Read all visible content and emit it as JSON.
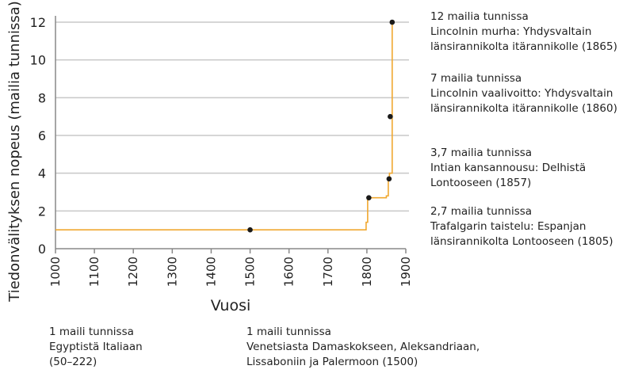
{
  "chart_data": {
    "type": "line",
    "xlabel": "Vuosi",
    "ylabel": "Tiedonvälityksen nopeus (mailia tunnissa)",
    "xlim": [
      1000,
      1900
    ],
    "ylim": [
      0,
      12
    ],
    "xticks": [
      "1000",
      "1100",
      "1200",
      "1300",
      "1400",
      "1500",
      "1600",
      "1700",
      "1800",
      "1900"
    ],
    "yticks": [
      "0",
      "2",
      "4",
      "6",
      "8",
      "10",
      "12"
    ],
    "grid": "horizontal",
    "line_color": "#f0a830",
    "step_line": [
      [
        1000,
        1
      ],
      [
        1798,
        1
      ],
      [
        1798,
        1.4
      ],
      [
        1802,
        1.4
      ],
      [
        1802,
        2.7
      ],
      [
        1850,
        2.7
      ],
      [
        1850,
        2.8
      ],
      [
        1855,
        2.8
      ],
      [
        1855,
        3.7
      ],
      [
        1858,
        3.7
      ],
      [
        1858,
        4
      ],
      [
        1865,
        4
      ],
      [
        1865,
        12
      ]
    ],
    "points": [
      [
        1500,
        1
      ],
      [
        1805,
        2.7
      ],
      [
        1857,
        3.7
      ],
      [
        1860,
        7
      ],
      [
        1865,
        12
      ]
    ],
    "annotations": [
      {
        "title": "12 mailia tunnissa",
        "text": [
          "Lincolnin murha: Yhdysvaltain",
          "länsirannikolta itärannikolle (1865)"
        ]
      },
      {
        "title": "7 mailia tunnissa",
        "text": [
          "Lincolnin vaalivoitto: Yhdysvaltain",
          "länsirannikolta itärannikolle (1860)"
        ]
      },
      {
        "title": "3,7 mailia tunnissa",
        "text": [
          "Intian kansannousu: Delhistä",
          "Lontooseen (1857)"
        ]
      },
      {
        "title": "2,7 mailia tunnissa",
        "text": [
          "Trafalgarin taistelu: Espanjan",
          "länsirannikolta Lontooseen (1805)"
        ]
      },
      {
        "title": "1 maili tunnissa",
        "text": [
          "Egyptistä Italiaan",
          "(50–222)"
        ]
      },
      {
        "title": "1 maili tunnissa",
        "text": [
          "Venetsiasta Damaskokseen, Aleksandriaan,",
          "Lissaboniin ja Palermoon (1500)"
        ]
      }
    ]
  }
}
